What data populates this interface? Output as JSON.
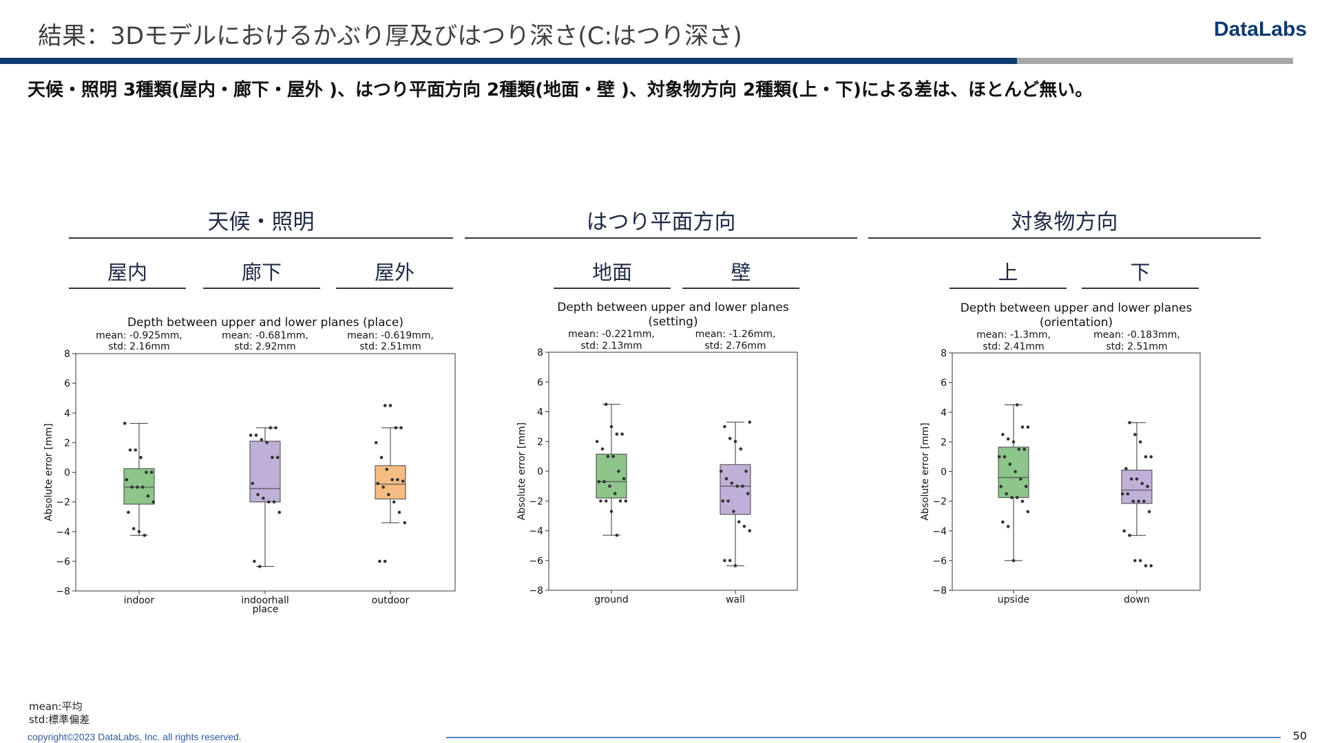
{
  "slide": {
    "title": "結果：3Dモデルにおけるかぶり厚及びはつり深さ(C:はつり深さ)",
    "brand": "DataLabs",
    "summary": "天候・照明 3種類(屋内・廊下・屋外 )、はつり平面方向 2種類(地面・壁 )、対象物方向 2種類(上・下)による差は、ほとんど無い。",
    "footnote_mean": "mean:平均",
    "footnote_std": "std:標準偏差",
    "copyright": "copyright©2023 DataLabs, Inc. all rights reserved.",
    "page_number": "50"
  },
  "groups": [
    {
      "label": "天候・照明",
      "sublabels": [
        "屋内",
        "廊下",
        "屋外"
      ]
    },
    {
      "label": "はつり平面方向",
      "sublabels": [
        "地面",
        "壁"
      ]
    },
    {
      "label": "対象物方向",
      "sublabels": [
        "上",
        "下"
      ]
    }
  ],
  "colors": {
    "green": "#8dc58b",
    "purple": "#bfb0d8",
    "orange": "#f5bc83",
    "median": "#555555",
    "point": "#333333"
  },
  "chart_data": [
    {
      "type": "box",
      "title": "Depth between upper and lower planes (place)",
      "ylabel": "Absolute error [mm]",
      "xlabel": "place",
      "ylim": [
        -8,
        8
      ],
      "yticks": [
        "−8",
        "−6",
        "−4",
        "−2",
        "0",
        "2",
        "4",
        "6",
        "8"
      ],
      "series": [
        {
          "category": "indoor",
          "color": "green",
          "stat_mean": "mean: -0.925mm,",
          "stat_std": "std: 2.16mm",
          "whisker_low": -4.25,
          "q1": -2.15,
          "median": -1.0,
          "q3": 0.25,
          "whisker_high": 3.3,
          "points": [
            3.3,
            1.5,
            1.5,
            1.0,
            0.0,
            0.0,
            -0.5,
            -1.0,
            -1.0,
            -1.0,
            -1.6,
            -2.0,
            -2.7,
            -3.8,
            -4.0,
            -4.25
          ]
        },
        {
          "category": "indoorhall",
          "color": "purple",
          "stat_mean": "mean: -0.681mm,",
          "stat_std": "std: 2.92mm",
          "whisker_low": -6.35,
          "q1": -2.0,
          "median": -1.1,
          "q3": 2.1,
          "whisker_high": 3.0,
          "points": [
            3.0,
            3.0,
            2.5,
            2.5,
            2.2,
            2.0,
            1.0,
            1.0,
            -0.75,
            -1.5,
            -1.75,
            -2.0,
            -2.0,
            -2.7,
            -6.0,
            -6.35
          ]
        },
        {
          "category": "outdoor",
          "color": "orange",
          "stat_mean": "mean: -0.619mm,",
          "stat_std": "std: 2.51mm",
          "whisker_low": -3.4,
          "q1": -1.8,
          "median": -0.8,
          "q3": 0.45,
          "whisker_high": 3.0,
          "points": [
            4.5,
            4.5,
            3.0,
            3.0,
            2.0,
            1.0,
            0.2,
            -0.5,
            -0.5,
            -0.6,
            -0.75,
            -1.0,
            -1.5,
            -2.0,
            -2.7,
            -3.4,
            -6.0,
            -6.0
          ]
        }
      ]
    },
    {
      "type": "box",
      "title": "Depth between upper and lower planes",
      "title2": "(setting)",
      "ylabel": "Absolute error [mm]",
      "xlabel": "",
      "ylim": [
        -8,
        8
      ],
      "yticks": [
        "−8",
        "−6",
        "−4",
        "−2",
        "0",
        "2",
        "4",
        "6",
        "8"
      ],
      "series": [
        {
          "category": "ground",
          "color": "green",
          "stat_mean": "mean: -0.221mm,",
          "stat_std": "std: 2.13mm",
          "whisker_low": -4.3,
          "q1": -1.8,
          "median": -0.7,
          "q3": 1.15,
          "whisker_high": 4.5,
          "points": [
            4.5,
            3.0,
            2.5,
            2.5,
            2.0,
            1.5,
            1.0,
            1.0,
            0.0,
            -0.5,
            -0.7,
            -0.7,
            -1.0,
            -1.5,
            -2.0,
            -2.0,
            -2.0,
            -2.0,
            -2.7,
            -4.3
          ]
        },
        {
          "category": "wall",
          "color": "purple",
          "stat_mean": "mean: -1.26mm,",
          "stat_std": "std: 2.76mm",
          "whisker_low": -6.35,
          "q1": -2.9,
          "median": -1.0,
          "q3": 0.45,
          "whisker_high": 3.3,
          "points": [
            3.3,
            3.0,
            2.2,
            2.0,
            1.5,
            0.0,
            0.0,
            -0.5,
            -0.8,
            -1.0,
            -1.0,
            -1.5,
            -2.0,
            -2.0,
            -2.7,
            -3.4,
            -3.7,
            -4.0,
            -6.0,
            -6.0,
            -6.35
          ]
        }
      ]
    },
    {
      "type": "box",
      "title": "Depth between upper and lower planes",
      "title2": "(orientation)",
      "ylabel": "Absolute error [mm]",
      "xlabel": "",
      "ylim": [
        -8,
        8
      ],
      "yticks": [
        "−8",
        "−6",
        "−4",
        "−2",
        "0",
        "2",
        "4",
        "6",
        "8"
      ],
      "series": [
        {
          "category": "upside",
          "color": "green",
          "stat_mean": "mean: -1.3mm,",
          "stat_std": "std: 2.41mm",
          "whisker_low": -6.0,
          "q1": -1.75,
          "median": -0.4,
          "q3": 1.65,
          "whisker_high": 4.5,
          "points": [
            4.5,
            3.0,
            3.0,
            2.5,
            2.2,
            2.0,
            1.5,
            1.5,
            1.0,
            1.0,
            0.5,
            0.0,
            -0.5,
            -1.0,
            -1.0,
            -1.5,
            -1.75,
            -1.75,
            -2.0,
            -2.7,
            -3.4,
            -3.7,
            -6.0
          ]
        },
        {
          "category": "down",
          "color": "purple",
          "stat_mean": "mean: -0.183mm,",
          "stat_std": "std: 2.51mm",
          "whisker_low": -4.3,
          "q1": -2.15,
          "median": -1.25,
          "q3": 0.1,
          "whisker_high": 3.3,
          "points": [
            3.3,
            2.5,
            2.0,
            1.0,
            1.0,
            0.2,
            -0.5,
            -0.5,
            -0.8,
            -1.0,
            -1.5,
            -1.5,
            -2.0,
            -2.0,
            -2.0,
            -2.7,
            -4.0,
            -4.3,
            -6.0,
            -6.0,
            -6.35,
            -6.35
          ]
        }
      ]
    }
  ]
}
